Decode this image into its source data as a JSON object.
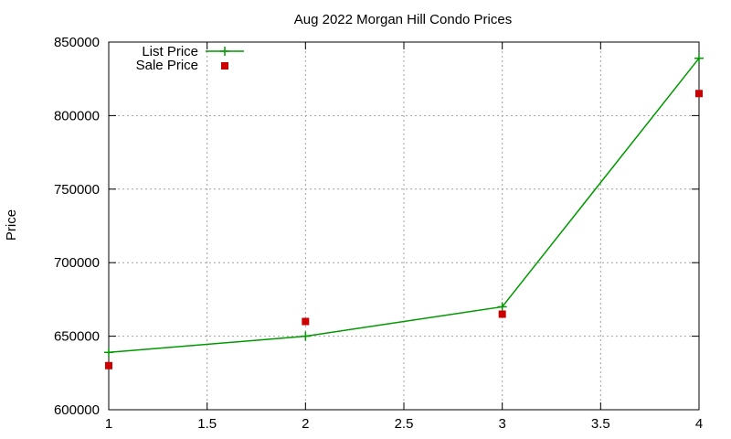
{
  "chart_data": {
    "type": "line",
    "title": "Aug 2022 Morgan Hill Condo Prices",
    "xlabel": "",
    "ylabel": "Price",
    "xlim": [
      1,
      4
    ],
    "ylim": [
      600000,
      850000
    ],
    "xticks": [
      "1",
      "1.5",
      "2",
      "2.5",
      "3",
      "3.5",
      "4"
    ],
    "xtick_values": [
      1,
      1.5,
      2,
      2.5,
      3,
      3.5,
      4
    ],
    "yticks": [
      "600000",
      "650000",
      "700000",
      "750000",
      "800000",
      "850000"
    ],
    "ytick_values": [
      600000,
      650000,
      700000,
      750000,
      800000,
      850000
    ],
    "grid": true,
    "legend_position": "top-left",
    "series": [
      {
        "name": "List Price",
        "style": "line-with-plus-markers",
        "color": "#009900",
        "x": [
          1,
          2,
          3,
          4
        ],
        "y": [
          639000,
          650000,
          670000,
          839000
        ]
      },
      {
        "name": "Sale Price",
        "style": "square-markers",
        "color": "#cc0000",
        "x": [
          1,
          2,
          3,
          4
        ],
        "y": [
          630000,
          660000,
          665000,
          815000
        ]
      }
    ]
  }
}
